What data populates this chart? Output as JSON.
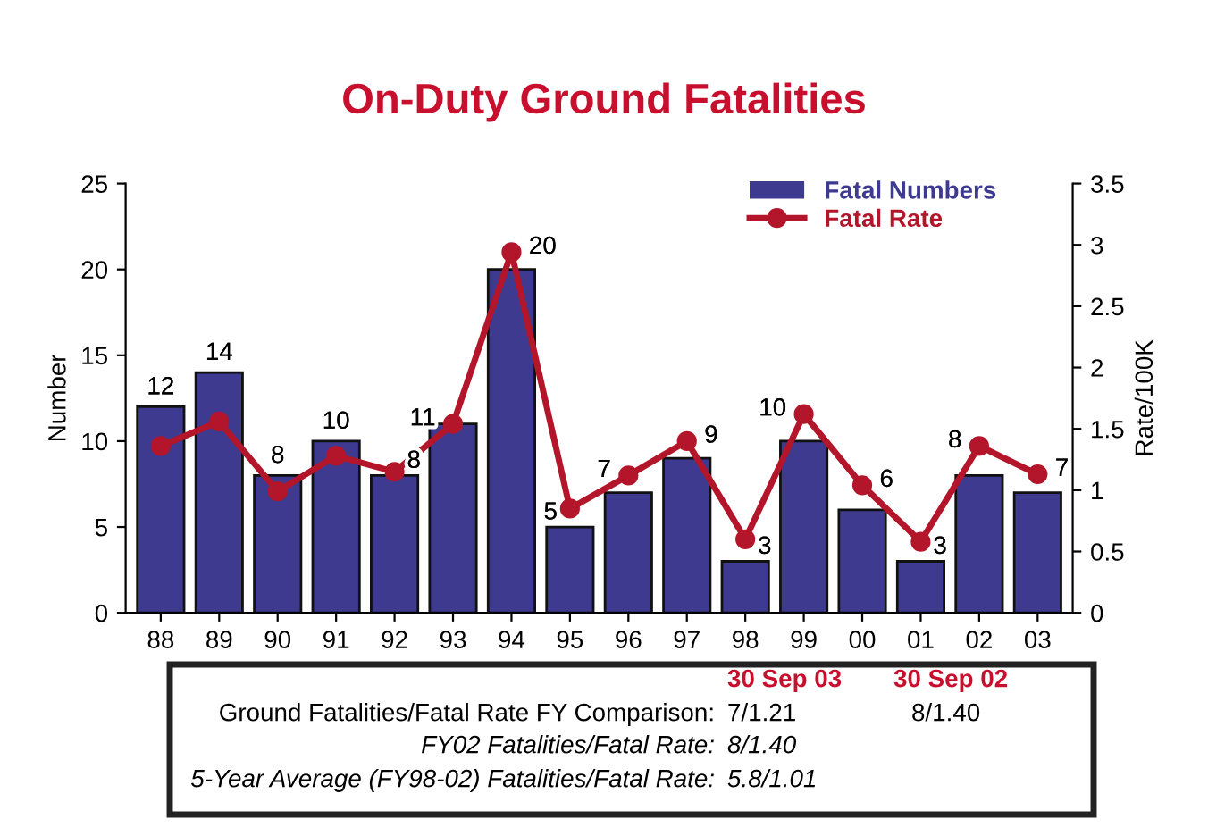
{
  "chart_data": {
    "type": "bar",
    "title": "On-Duty Ground Fatalities",
    "ylabel": "Number",
    "y2label": "Rate/100K",
    "categories": [
      "88",
      "89",
      "90",
      "91",
      "92",
      "93",
      "94",
      "95",
      "96",
      "97",
      "98",
      "99",
      "00",
      "01",
      "02",
      "03"
    ],
    "series": [
      {
        "name": "Fatal Numbers",
        "color": "#3d3a8f",
        "values": [
          12,
          14,
          8,
          10,
          8,
          11,
          20,
          5,
          7,
          9,
          3,
          10,
          6,
          3,
          8,
          7
        ],
        "value_labels": [
          "12",
          "14",
          "8",
          "10",
          "8",
          "11",
          "20",
          "5",
          "7",
          "9",
          "3",
          "10",
          "6",
          "3",
          "8",
          "7"
        ]
      },
      {
        "name": "Fatal Rate",
        "type": "line",
        "axis": "y2",
        "color": "#b3162a",
        "marker": "circle",
        "values": [
          1.36,
          1.56,
          0.99,
          1.28,
          1.15,
          1.54,
          2.94,
          0.85,
          1.12,
          1.4,
          0.6,
          1.62,
          1.04,
          0.58,
          1.36,
          1.13
        ]
      }
    ],
    "ylim": [
      0,
      25
    ],
    "yticks": [
      0,
      5,
      10,
      15,
      20,
      25
    ],
    "y2lim": [
      0,
      3.5
    ],
    "y2ticks": [
      0,
      0.5,
      1,
      1.5,
      2,
      2.5,
      3,
      3.5
    ],
    "grid": false,
    "legend": "top right",
    "annotations": [
      "30 Sep 03",
      "30 Sep 02",
      "Ground Fatalities/Fatal Rate FY Comparison:",
      "7/1.21",
      "8/1.40",
      "FY02 Fatalities/Fatal Rate:",
      "8/1.40",
      "5-Year Average (FY98-02) Fatalities/Fatal Rate:",
      "5.8/1.01"
    ]
  }
}
